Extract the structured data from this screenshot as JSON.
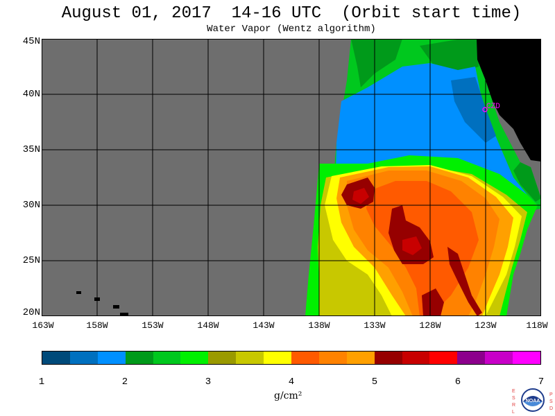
{
  "title": "August 01, 2017  14-16 UTC  (Orbit start time)",
  "subtitle": "Water Vapor (Wentz algorithm)",
  "map": {
    "lat_labels": [
      "45N",
      "40N",
      "35N",
      "30N",
      "25N",
      "20N"
    ],
    "lon_labels": [
      "163W",
      "158W",
      "153W",
      "148W",
      "143W",
      "138W",
      "133W",
      "128W",
      "123W",
      "118W"
    ],
    "station_label": "CZD",
    "colors": {
      "no_data": "#6e6e6e",
      "land": "#000000",
      "grid": "#000000",
      "station": "#ff00ff"
    }
  },
  "colorbar": {
    "ticks": [
      "1",
      "2",
      "3",
      "4",
      "5",
      "6",
      "7"
    ],
    "unit": "g/cm²",
    "colors": [
      "#004a7a",
      "#0070bf",
      "#0090ff",
      "#009a1a",
      "#00c81e",
      "#00f000",
      "#9a9a00",
      "#c8c800",
      "#ffff00",
      "#ff5a00",
      "#ff8200",
      "#ffa000",
      "#960000",
      "#c80000",
      "#ff0000",
      "#8c008c",
      "#c800c8",
      "#ff00ff"
    ]
  },
  "logo": {
    "text": "NOAA",
    "left_letters": "ESRL",
    "right_letters": "PSD"
  }
}
